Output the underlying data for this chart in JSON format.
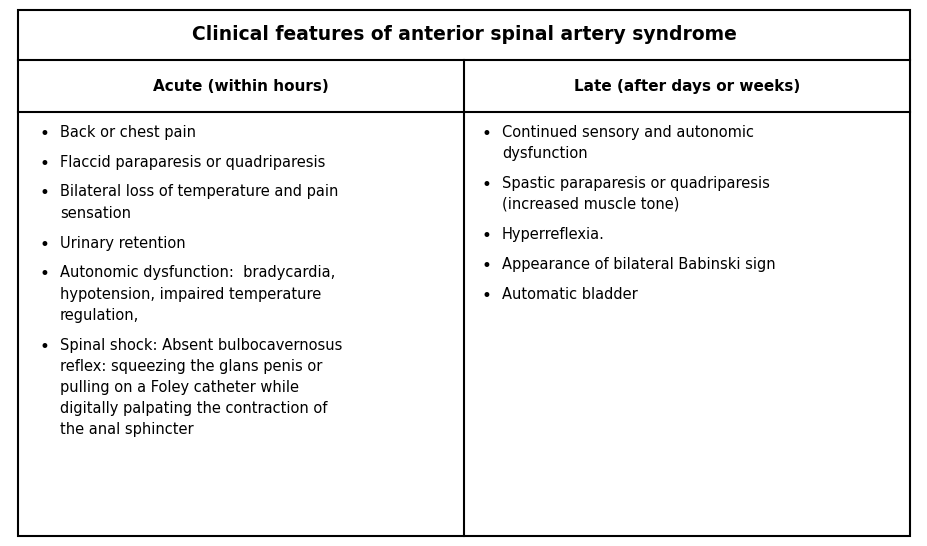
{
  "title": "Clinical features of anterior spinal artery syndrome",
  "col1_header": "Acute (within hours)",
  "col2_header": "Late (after days or weeks)",
  "col1_items": [
    "Back or chest pain",
    "Flaccid paraparesis or quadriparesis",
    "Bilateral loss of temperature and pain\nsensation",
    "Urinary retention",
    "Autonomic dysfunction:  bradycardia,\nhypotension, impaired temperature\nregulation,",
    "Spinal shock: Absent bulbocavernosus\nreflex: squeezing the glans penis or\npulling on a Foley catheter while\ndigitally palpating the contraction of\nthe anal sphincter"
  ],
  "col2_items": [
    "Continued sensory and autonomic\ndysfunction",
    "Spastic paraparesis or quadriparesis\n(increased muscle tone)",
    "Hyperreflexia.",
    "Appearance of bilateral Babinski sign",
    "Automatic bladder"
  ],
  "bg_color": "#ffffff",
  "border_color": "#000000",
  "title_fontsize": 13.5,
  "header_fontsize": 11,
  "body_fontsize": 10.5,
  "fig_width": 9.28,
  "fig_height": 5.46,
  "dpi": 100
}
